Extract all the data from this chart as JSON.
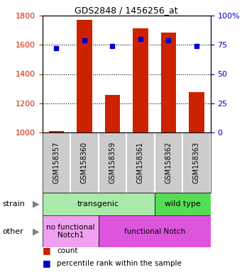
{
  "title": "GDS2848 / 1456256_at",
  "samples": [
    "GSM158357",
    "GSM158360",
    "GSM158359",
    "GSM158361",
    "GSM158362",
    "GSM158363"
  ],
  "counts": [
    1010,
    1770,
    1255,
    1715,
    1685,
    1275
  ],
  "percentiles": [
    72,
    79,
    74,
    80,
    79,
    74
  ],
  "ylim_left": [
    1000,
    1800
  ],
  "ylim_right": [
    0,
    100
  ],
  "yticks_left": [
    1000,
    1200,
    1400,
    1600,
    1800
  ],
  "yticks_right": [
    0,
    25,
    50,
    75,
    100
  ],
  "bar_color": "#cc2200",
  "dot_color": "#0000cc",
  "bar_width": 0.55,
  "strain_labels": [
    {
      "text": "transgenic",
      "span": [
        0,
        4
      ],
      "color": "#aaeaaa"
    },
    {
      "text": "wild type",
      "span": [
        4,
        6
      ],
      "color": "#55dd55"
    }
  ],
  "other_labels": [
    {
      "text": "no functional\nNotch1",
      "span": [
        0,
        2
      ],
      "color": "#f0a0f0"
    },
    {
      "text": "functional Notch",
      "span": [
        2,
        6
      ],
      "color": "#dd55dd"
    }
  ],
  "legend_count_color": "#cc2200",
  "legend_pct_color": "#0000cc",
  "label_bg": "#cccccc",
  "plot_bg": "#ffffff"
}
